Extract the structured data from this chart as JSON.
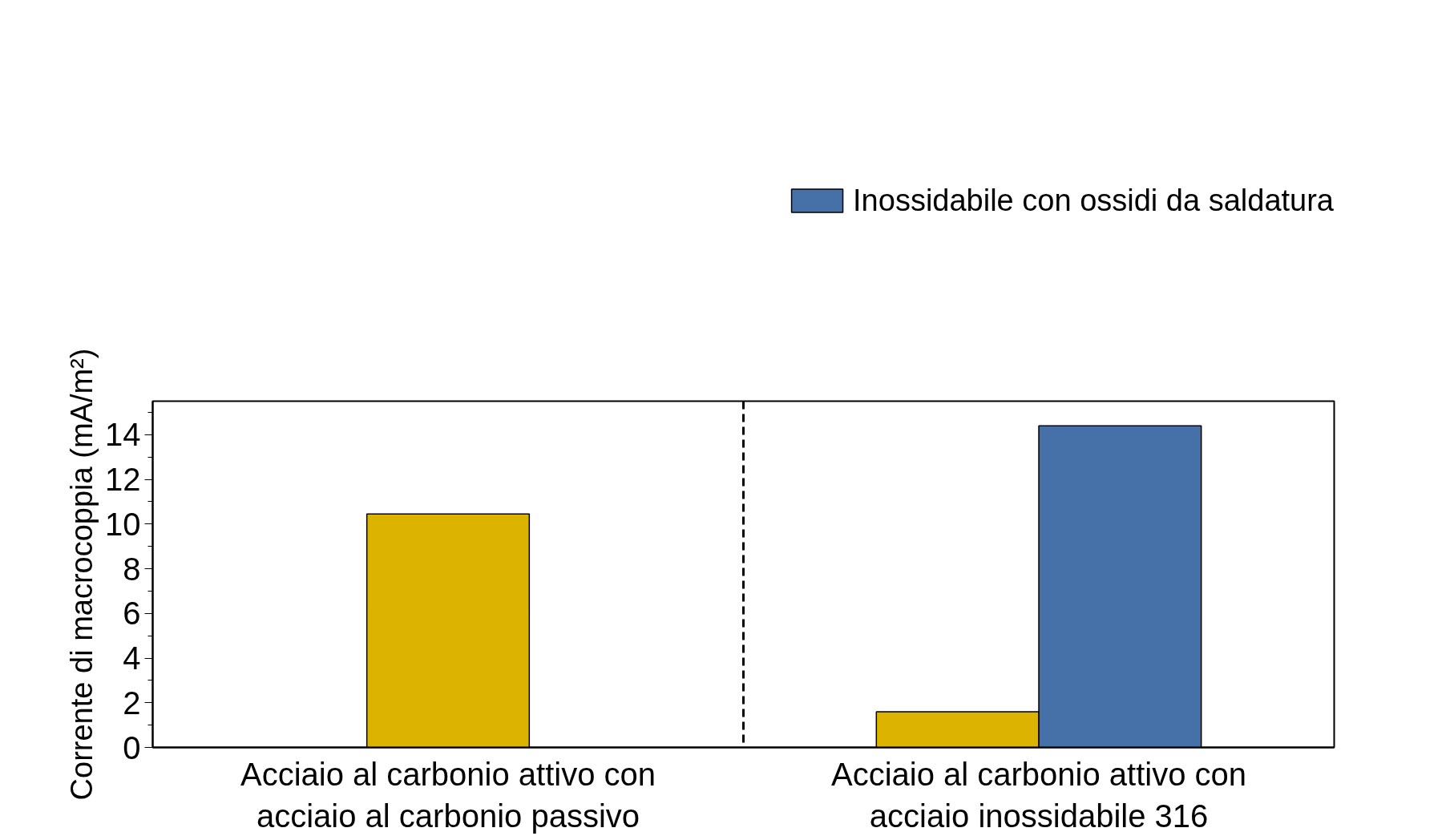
{
  "chart_data": {
    "type": "bar",
    "ylabel": "Corrente di macrocoppia (mA/m²)",
    "categories": [
      "Acciaio al carbonio attivo con acciaio al carbonio passivo",
      "Acciaio al carbonio attivo con acciaio inossidabile 316"
    ],
    "series": [
      {
        "color": "#dcb400",
        "values": [
          10.45,
          1.6
        ]
      },
      {
        "name": "Inossidabile con ossidi da saldatura",
        "color": "#4670a8",
        "values": [
          null,
          14.4
        ]
      }
    ],
    "ylim": [
      0,
      15.5
    ],
    "yticks": [
      0,
      2,
      4,
      6,
      8,
      10,
      12,
      14
    ],
    "grid": false,
    "legend": "top right"
  }
}
